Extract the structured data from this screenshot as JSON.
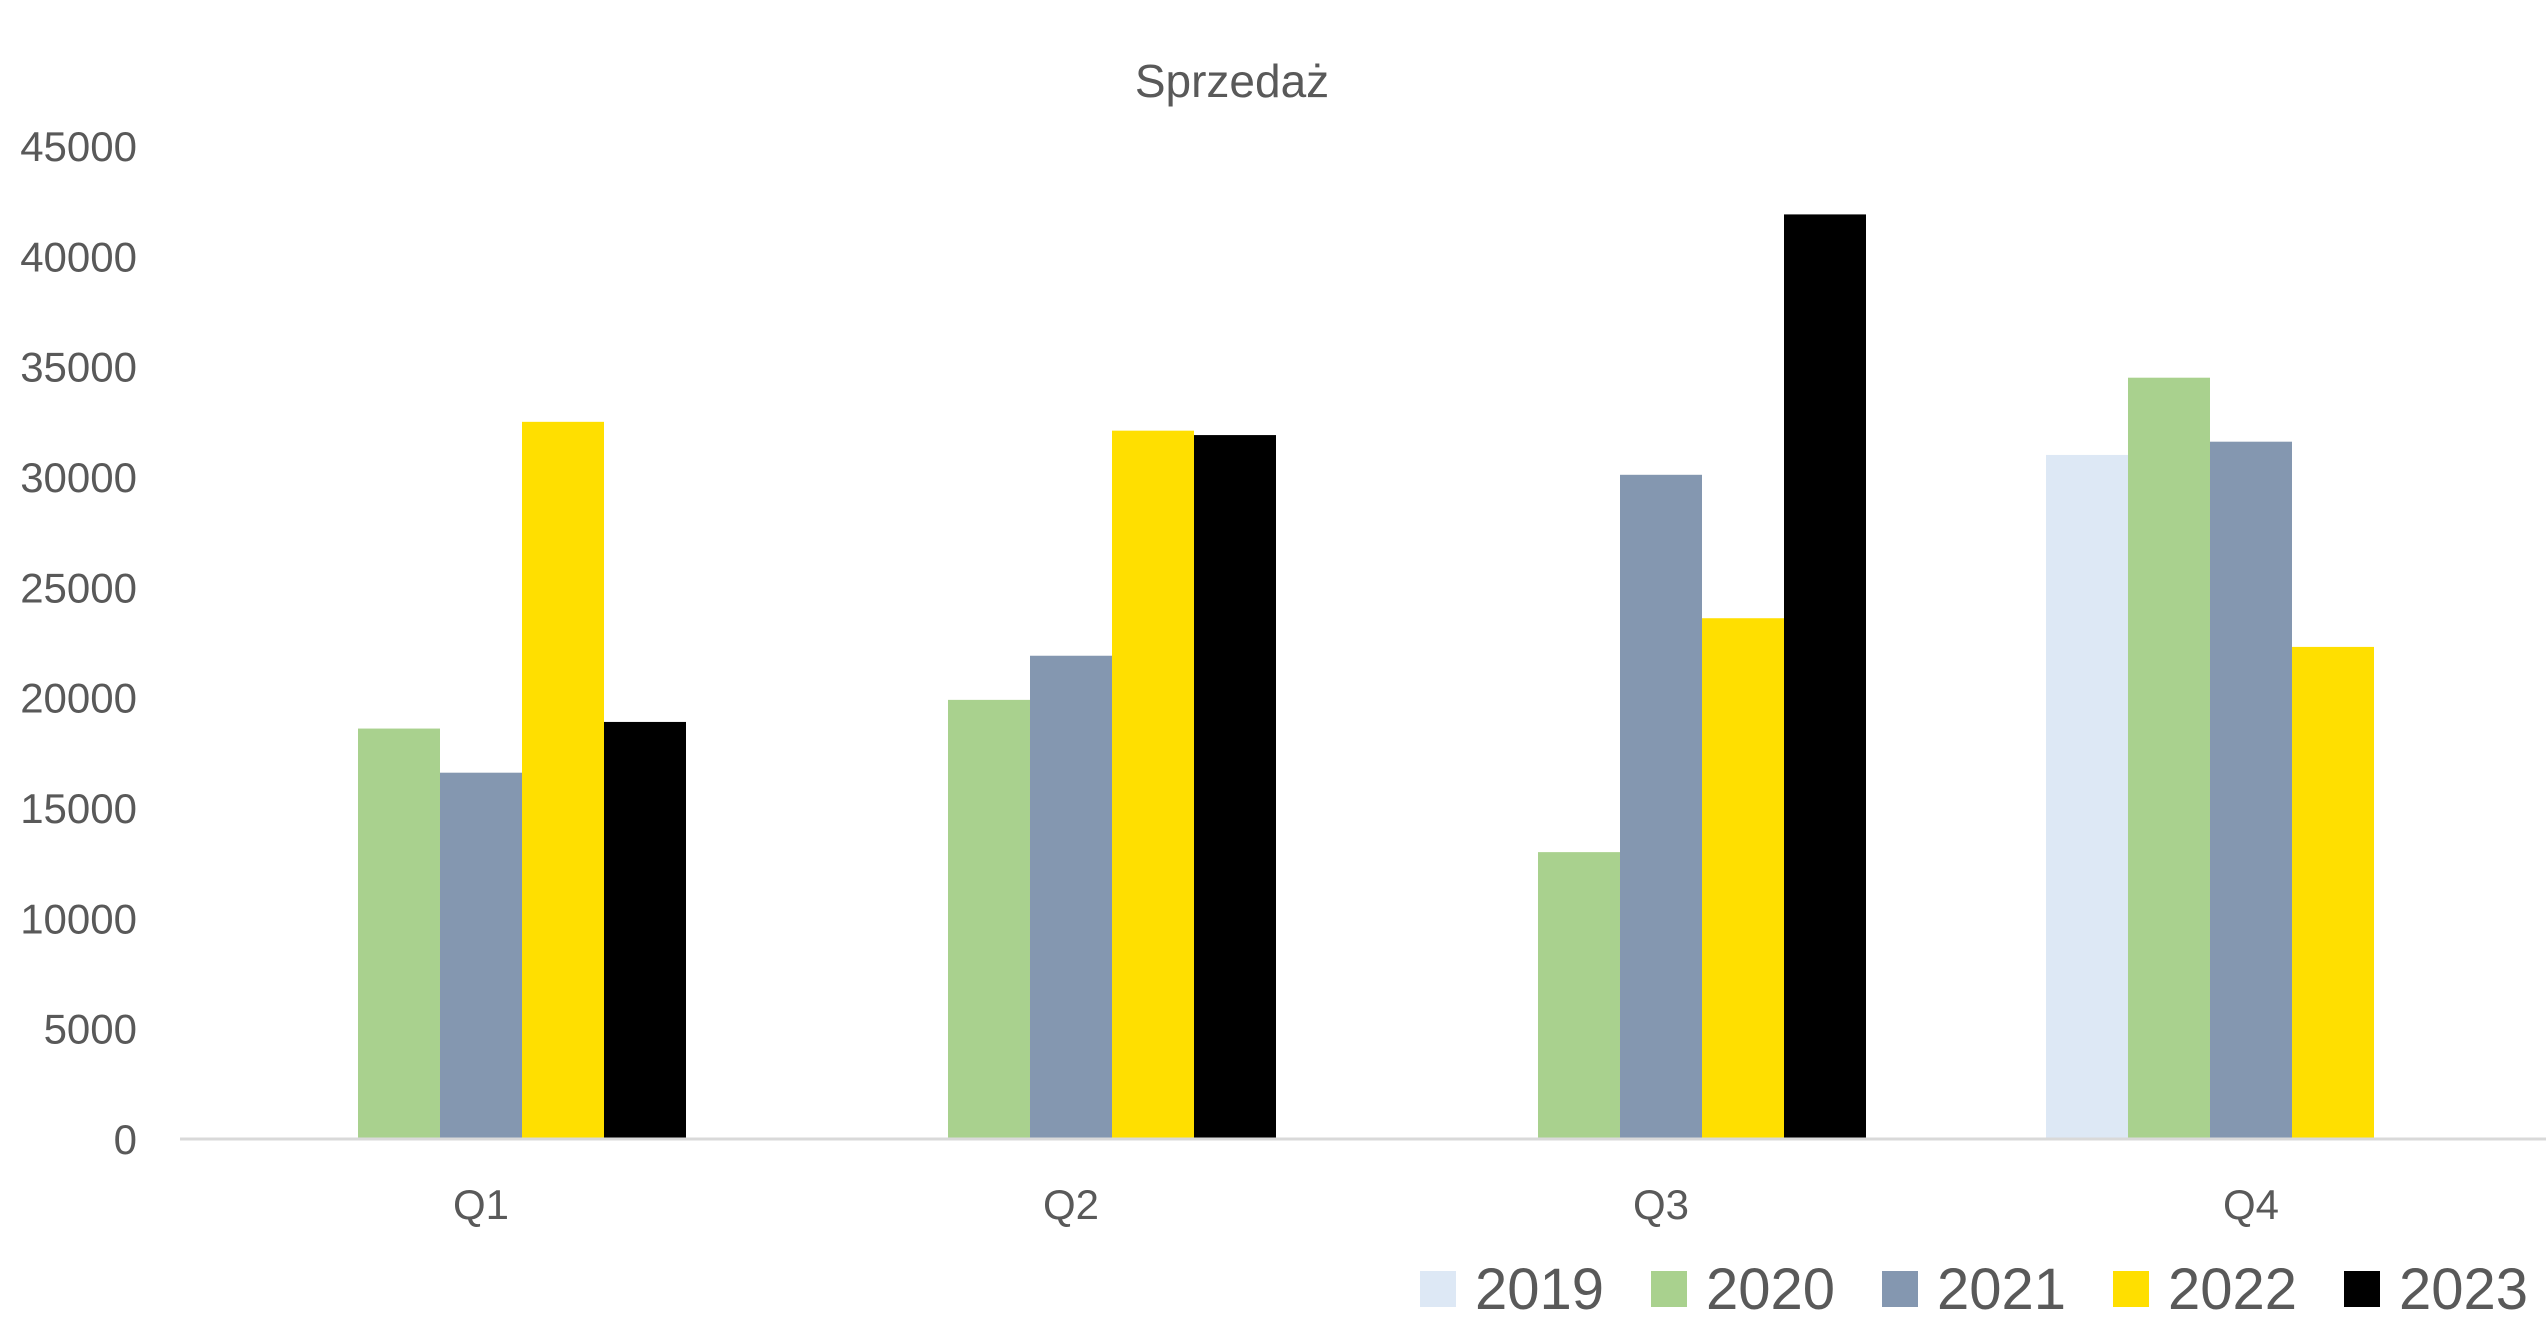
{
  "chart_data": {
    "type": "bar",
    "title": "Sprzedaż",
    "xlabel": "",
    "ylabel": "",
    "categories": [
      "Q1",
      "Q2",
      "Q3",
      "Q4"
    ],
    "ylim": [
      0,
      45000
    ],
    "yticks": [
      0,
      5000,
      10000,
      15000,
      20000,
      25000,
      30000,
      35000,
      40000,
      45000
    ],
    "grid": false,
    "legend_position": "bottom-right",
    "series": [
      {
        "name": "2019",
        "color": "#dde8f5",
        "values": [
          null,
          null,
          null,
          31000
        ]
      },
      {
        "name": "2020",
        "color": "#a9d18e",
        "values": [
          18600,
          19900,
          13000,
          34500
        ]
      },
      {
        "name": "2021",
        "color": "#8497b0",
        "values": [
          16600,
          21900,
          30100,
          31600
        ]
      },
      {
        "name": "2022",
        "color": "#ffdf00",
        "values": [
          32500,
          32100,
          23600,
          22300
        ]
      },
      {
        "name": "2023",
        "color": "#000000",
        "values": [
          18900,
          31900,
          41900,
          null
        ]
      }
    ]
  }
}
